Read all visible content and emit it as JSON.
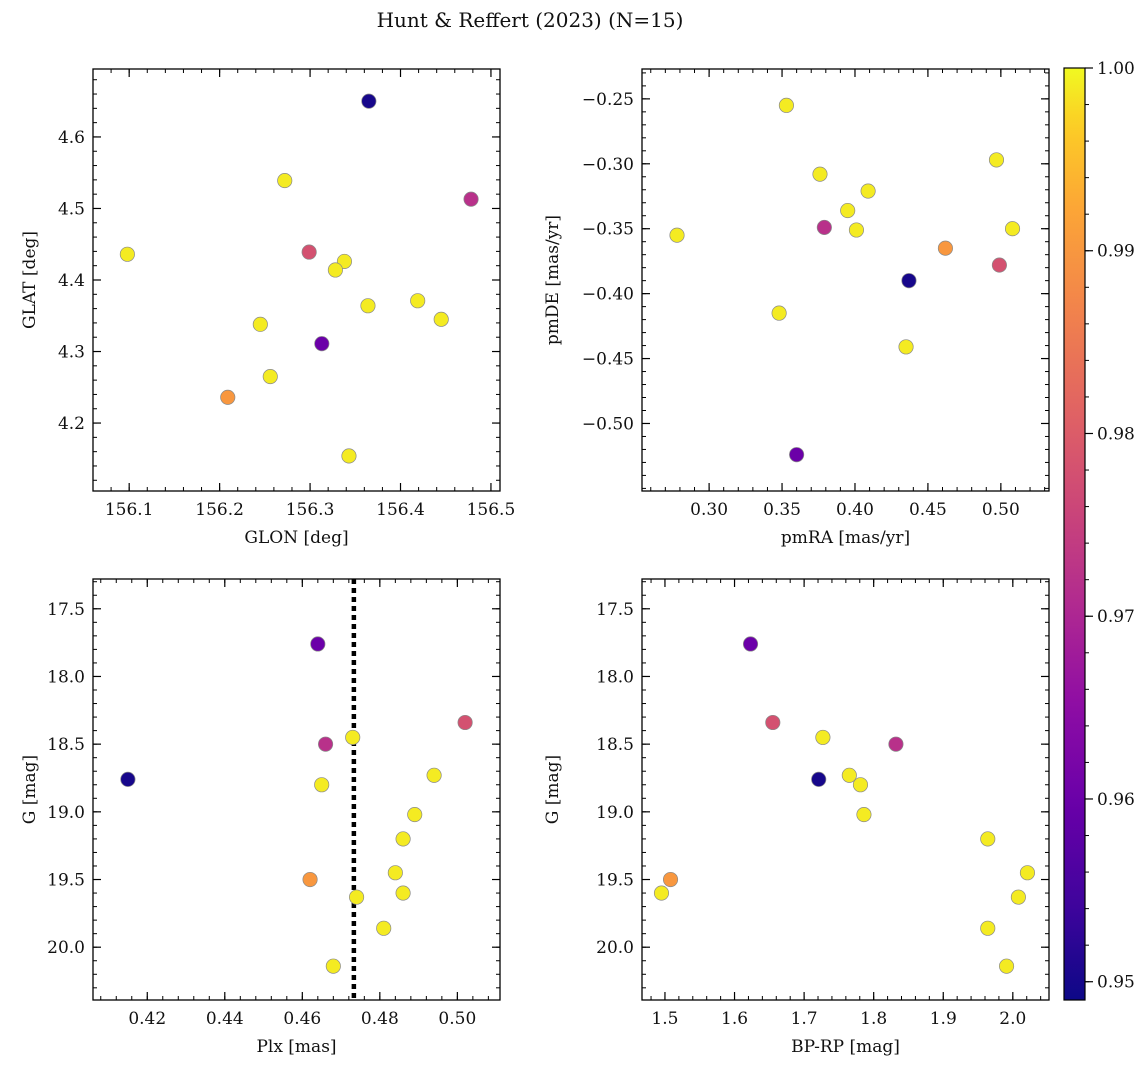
{
  "figure_title": "Hunt & Reffert (2023) (N=15)",
  "chart_data": [
    {
      "type": "scatter",
      "id": "glon-glat",
      "xlabel": "GLON [deg]",
      "ylabel": "GLAT [deg]",
      "xlim": [
        156.06,
        156.51
      ],
      "ylim": [
        4.105,
        4.695
      ],
      "xticks": [
        156.1,
        156.2,
        156.3,
        156.4,
        156.5
      ],
      "xtick_labels": [
        "156.1",
        "156.2",
        "156.3",
        "156.4",
        "156.5"
      ],
      "yticks": [
        4.2,
        4.3,
        4.4,
        4.5,
        4.6
      ],
      "ytick_labels": [
        "4.2",
        "4.3",
        "4.4",
        "4.5",
        "4.6"
      ],
      "points": [
        {
          "x": 156.365,
          "y": 4.65,
          "c": 0.95
        },
        {
          "x": 156.272,
          "y": 4.539,
          "c": 0.999
        },
        {
          "x": 156.478,
          "y": 4.513,
          "c": 0.972
        },
        {
          "x": 156.098,
          "y": 4.436,
          "c": 0.999
        },
        {
          "x": 156.299,
          "y": 4.439,
          "c": 0.978
        },
        {
          "x": 156.338,
          "y": 4.426,
          "c": 0.999
        },
        {
          "x": 156.328,
          "y": 4.414,
          "c": 0.999
        },
        {
          "x": 156.419,
          "y": 4.371,
          "c": 0.999
        },
        {
          "x": 156.364,
          "y": 4.364,
          "c": 0.999
        },
        {
          "x": 156.445,
          "y": 4.345,
          "c": 0.999
        },
        {
          "x": 156.245,
          "y": 4.338,
          "c": 0.999
        },
        {
          "x": 156.313,
          "y": 4.311,
          "c": 0.96
        },
        {
          "x": 156.256,
          "y": 4.265,
          "c": 0.999
        },
        {
          "x": 156.209,
          "y": 4.236,
          "c": 0.99
        },
        {
          "x": 156.343,
          "y": 4.154,
          "c": 0.999
        }
      ]
    },
    {
      "type": "scatter",
      "id": "pmra-pmde",
      "xlabel": "pmRA [mas/yr]",
      "ylabel": "pmDE [mas/yr]",
      "xlim": [
        0.254,
        0.533
      ],
      "ylim": [
        -0.552,
        -0.227
      ],
      "xticks": [
        0.3,
        0.35,
        0.4,
        0.45,
        0.5
      ],
      "xtick_labels": [
        "0.30",
        "0.35",
        "0.40",
        "0.45",
        "0.50"
      ],
      "yticks": [
        -0.5,
        -0.45,
        -0.4,
        -0.35,
        -0.3,
        -0.25
      ],
      "ytick_labels": [
        "−0.50",
        "−0.45",
        "−0.40",
        "−0.35",
        "−0.30",
        "−0.25"
      ],
      "points": [
        {
          "x": 0.353,
          "y": -0.255,
          "c": 0.999
        },
        {
          "x": 0.497,
          "y": -0.297,
          "c": 0.999
        },
        {
          "x": 0.376,
          "y": -0.308,
          "c": 0.999
        },
        {
          "x": 0.409,
          "y": -0.321,
          "c": 0.999
        },
        {
          "x": 0.395,
          "y": -0.336,
          "c": 0.999
        },
        {
          "x": 0.379,
          "y": -0.349,
          "c": 0.972
        },
        {
          "x": 0.401,
          "y": -0.351,
          "c": 0.999
        },
        {
          "x": 0.508,
          "y": -0.35,
          "c": 0.999
        },
        {
          "x": 0.278,
          "y": -0.355,
          "c": 0.999
        },
        {
          "x": 0.462,
          "y": -0.365,
          "c": 0.99
        },
        {
          "x": 0.499,
          "y": -0.378,
          "c": 0.978
        },
        {
          "x": 0.437,
          "y": -0.39,
          "c": 0.95
        },
        {
          "x": 0.348,
          "y": -0.415,
          "c": 0.999
        },
        {
          "x": 0.435,
          "y": -0.441,
          "c": 0.999
        },
        {
          "x": 0.36,
          "y": -0.524,
          "c": 0.96
        }
      ]
    },
    {
      "type": "scatter",
      "id": "plx-g",
      "xlabel": "Plx [mas]",
      "ylabel": "G [mag]",
      "xlim": [
        0.406,
        0.511
      ],
      "ylim": [
        20.39,
        17.28
      ],
      "xticks": [
        0.42,
        0.44,
        0.46,
        0.48,
        0.5
      ],
      "xtick_labels": [
        "0.42",
        "0.44",
        "0.46",
        "0.48",
        "0.50"
      ],
      "yticks": [
        17.5,
        18.0,
        18.5,
        19.0,
        19.5,
        20.0
      ],
      "ytick_labels": [
        "17.5",
        "18.0",
        "18.5",
        "19.0",
        "19.5",
        "20.0"
      ],
      "vline": 0.4733,
      "points": [
        {
          "x": 0.464,
          "y": 17.76,
          "c": 0.96
        },
        {
          "x": 0.502,
          "y": 18.34,
          "c": 0.978
        },
        {
          "x": 0.473,
          "y": 18.45,
          "c": 0.999
        },
        {
          "x": 0.466,
          "y": 18.5,
          "c": 0.972
        },
        {
          "x": 0.415,
          "y": 18.76,
          "c": 0.95
        },
        {
          "x": 0.494,
          "y": 18.73,
          "c": 0.999
        },
        {
          "x": 0.465,
          "y": 18.8,
          "c": 0.999
        },
        {
          "x": 0.489,
          "y": 19.02,
          "c": 0.999
        },
        {
          "x": 0.486,
          "y": 19.2,
          "c": 0.999
        },
        {
          "x": 0.484,
          "y": 19.45,
          "c": 0.999
        },
        {
          "x": 0.462,
          "y": 19.5,
          "c": 0.99
        },
        {
          "x": 0.486,
          "y": 19.6,
          "c": 0.999
        },
        {
          "x": 0.474,
          "y": 19.63,
          "c": 0.999
        },
        {
          "x": 0.481,
          "y": 19.86,
          "c": 0.999
        },
        {
          "x": 0.468,
          "y": 20.14,
          "c": 0.999
        }
      ]
    },
    {
      "type": "scatter",
      "id": "bprp-g",
      "xlabel": "BP-RP [mag]",
      "ylabel": "G [mag]",
      "xlim": [
        1.467,
        2.052
      ],
      "ylim": [
        20.39,
        17.28
      ],
      "xticks": [
        1.5,
        1.6,
        1.7,
        1.8,
        1.9,
        2.0
      ],
      "xtick_labels": [
        "1.5",
        "1.6",
        "1.7",
        "1.8",
        "1.9",
        "2.0"
      ],
      "yticks": [
        17.5,
        18.0,
        18.5,
        19.0,
        19.5,
        20.0
      ],
      "ytick_labels": [
        "17.5",
        "18.0",
        "18.5",
        "19.0",
        "19.5",
        "20.0"
      ],
      "points": [
        {
          "x": 1.623,
          "y": 17.76,
          "c": 0.96
        },
        {
          "x": 1.655,
          "y": 18.34,
          "c": 0.978
        },
        {
          "x": 1.727,
          "y": 18.45,
          "c": 0.999
        },
        {
          "x": 1.832,
          "y": 18.5,
          "c": 0.972
        },
        {
          "x": 1.721,
          "y": 18.76,
          "c": 0.95
        },
        {
          "x": 1.765,
          "y": 18.73,
          "c": 0.999
        },
        {
          "x": 1.781,
          "y": 18.8,
          "c": 0.999
        },
        {
          "x": 1.786,
          "y": 19.02,
          "c": 0.999
        },
        {
          "x": 1.964,
          "y": 19.2,
          "c": 0.999
        },
        {
          "x": 2.021,
          "y": 19.45,
          "c": 0.999
        },
        {
          "x": 1.508,
          "y": 19.5,
          "c": 0.99
        },
        {
          "x": 1.495,
          "y": 19.6,
          "c": 0.999
        },
        {
          "x": 2.008,
          "y": 19.63,
          "c": 0.999
        },
        {
          "x": 1.964,
          "y": 19.86,
          "c": 0.999
        },
        {
          "x": 1.991,
          "y": 20.14,
          "c": 0.999
        }
      ]
    }
  ],
  "colorbar": {
    "cmap": "plasma",
    "range": [
      0.949,
      1.0
    ],
    "ticks": [
      0.95,
      0.96,
      0.97,
      0.98,
      0.99,
      1.0
    ],
    "tick_labels": [
      "0.95",
      "0.96",
      "0.97",
      "0.98",
      "0.99",
      "1.00"
    ]
  }
}
